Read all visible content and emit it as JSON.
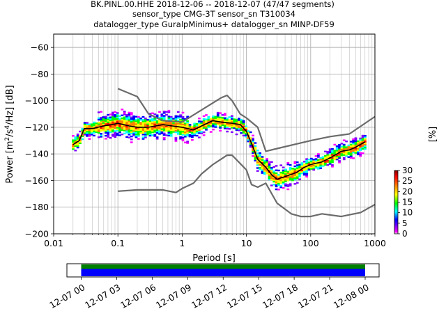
{
  "title_lines": [
    "BK.PINL.00.HHE   2018-12-06 -- 2018-12-07  (47/47 segments)",
    "sensor_type CMG-3T sensor_sn T310034",
    "datalogger_type GuralpMinimus+ datalogger_sn MINP-DF59"
  ],
  "colors": {
    "noise_model": "#6b6b6b",
    "mode_line": "#000000",
    "coverage_top": "#008000",
    "coverage_bottom": "#0000ff",
    "colormap": [
      "#ffffff",
      "#ff00ff",
      "#7f00ff",
      "#0000ff",
      "#00ffff",
      "#00ff00",
      "#ffff00",
      "#ff8000",
      "#ff0000",
      "#7f0000"
    ]
  },
  "chart_data": [
    {
      "type": "heatmap",
      "subtype": "probabilistic-power-spectral-density",
      "xlabel": "Period [s]",
      "ylabel_parts": {
        "prefix": "Power [m",
        "sup1": "2",
        "mid": "/s",
        "sup2": "4",
        "suffix": "/Hz] [dB]"
      },
      "x_scale": "log",
      "xlim": [
        0.01,
        1000
      ],
      "ylim": [
        -200,
        -50
      ],
      "x_ticks": [
        0.01,
        0.1,
        1,
        10,
        100,
        1000
      ],
      "x_tick_labels": [
        "0.01",
        "0.1",
        "1",
        "10",
        "100",
        "1000"
      ],
      "y_ticks": [
        -200,
        -180,
        -160,
        -140,
        -120,
        -100,
        -80,
        -60
      ],
      "y_tick_labels": [
        "−200",
        "−180",
        "−160",
        "−140",
        "−120",
        "−100",
        "−80",
        "−60"
      ],
      "grid": true,
      "colorbar": {
        "label": "[%]",
        "range": [
          0,
          30
        ],
        "ticks": [
          0,
          5,
          10,
          15,
          20,
          25,
          30
        ],
        "tick_labels": [
          "0",
          "5",
          "10",
          "15",
          "20",
          "25",
          "30"
        ]
      },
      "mode_curve": {
        "period": [
          0.02,
          0.025,
          0.03,
          0.04,
          0.06,
          0.08,
          0.1,
          0.15,
          0.2,
          0.3,
          0.5,
          0.7,
          1.0,
          1.5,
          2.0,
          3.0,
          4.0,
          6.0,
          8.0,
          10.0,
          12.0,
          15.0,
          20.0,
          25.0,
          30.0,
          40.0,
          60.0,
          80.0,
          100.0,
          150.0,
          200.0,
          300.0,
          400.0,
          500.0,
          700.0
        ],
        "power_db": [
          -133,
          -130,
          -121,
          -121,
          -119,
          -118,
          -117,
          -119,
          -120,
          -120,
          -118,
          -119,
          -120,
          -122,
          -119,
          -115,
          -116,
          -117,
          -118,
          -123,
          -132,
          -144,
          -150,
          -156,
          -159,
          -157,
          -154,
          -150,
          -148,
          -146,
          -143,
          -138,
          -137,
          -135,
          -131
        ]
      },
      "noise_models": [
        {
          "period": [
            0.1,
            0.2,
            0.3,
            0.5,
            1.0,
            2.0,
            4.0,
            5.0,
            6.0,
            8.0,
            10.0,
            15.0,
            20.0,
            30.0,
            100.0,
            200.0,
            400.0,
            1000.0
          ],
          "power_db": [
            -91,
            -97,
            -110,
            -115,
            -116,
            -107,
            -98,
            -96,
            -100,
            -110,
            -113,
            -120,
            -138,
            -136,
            -130,
            -127,
            -125,
            -112
          ]
        },
        {
          "period": [
            0.1,
            0.2,
            0.5,
            0.8,
            1.0,
            1.5,
            2.0,
            3.0,
            4.0,
            5.0,
            6.0,
            10.0,
            12.0,
            15.0,
            20.0,
            30.0,
            50.0,
            70.0,
            100.0,
            150.0,
            300.0,
            600.0,
            1000.0
          ],
          "power_db": [
            -168,
            -167,
            -167,
            -169,
            -166,
            -162,
            -155,
            -148,
            -144,
            -141,
            -141,
            -152,
            -163,
            -165,
            -162,
            -177,
            -185,
            -187,
            -187,
            -185,
            -187,
            -184,
            -178
          ]
        }
      ]
    },
    {
      "type": "bar",
      "subtype": "data-coverage-timeline",
      "time_range": [
        "2018-12-07 00",
        "2018-12-08 00"
      ],
      "tick_labels": [
        "12-07 00",
        "12-07 03",
        "12-07 06",
        "12-07 09",
        "12-07 12",
        "12-07 15",
        "12-07 18",
        "12-07 21",
        "12-08 00"
      ],
      "coverage_fraction": 1.0,
      "series": [
        {
          "row": "top",
          "color": "#008000"
        },
        {
          "row": "bottom",
          "color": "#0000ff"
        }
      ]
    }
  ]
}
